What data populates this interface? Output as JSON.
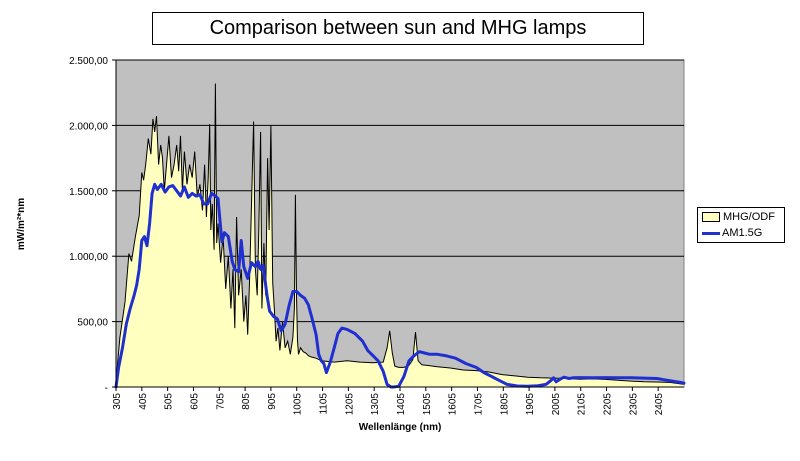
{
  "chart_data": {
    "type": "area",
    "title": "Comparison between sun and MHG lamps",
    "xlabel": "Wellenlänge (nm)",
    "ylabel": "mW/m²*nm",
    "xlim": [
      305,
      2505
    ],
    "ylim": [
      0,
      2500
    ],
    "y_ticks": [
      0,
      500,
      1000,
      1500,
      2000,
      2500
    ],
    "y_tick_labels": [
      "-",
      "500,00",
      "1.000,00",
      "1.500,00",
      "2.000,00",
      "2.500,00"
    ],
    "x_ticks": [
      305,
      405,
      505,
      605,
      705,
      805,
      905,
      1005,
      1105,
      1205,
      1305,
      1405,
      1505,
      1605,
      1705,
      1805,
      1905,
      2005,
      2105,
      2205,
      2305,
      2405
    ],
    "grid": true,
    "legend_position": "right",
    "series": [
      {
        "name": "MHG/ODF",
        "style": "filled-area",
        "fill_color": "#ffffc0",
        "line_color": "#000000",
        "x": [
          305,
          320,
          340,
          355,
          365,
          380,
          395,
          405,
          412,
          420,
          430,
          440,
          448,
          455,
          462,
          470,
          478,
          485,
          492,
          500,
          510,
          520,
          530,
          540,
          548,
          555,
          562,
          570,
          580,
          590,
          600,
          610,
          620,
          630,
          640,
          648,
          655,
          662,
          668,
          672,
          678,
          685,
          690,
          695,
          700,
          710,
          720,
          730,
          740,
          750,
          758,
          765,
          772,
          780,
          790,
          800,
          808,
          815,
          822,
          830,
          838,
          845,
          852,
          858,
          865,
          870,
          878,
          885,
          892,
          898,
          905,
          912,
          918,
          925,
          932,
          940,
          950,
          960,
          970,
          980,
          990,
          996,
          1000,
          1004,
          1008,
          1012,
          1020,
          1030,
          1040,
          1050,
          1060,
          1080,
          1100,
          1150,
          1200,
          1250,
          1300,
          1340,
          1355,
          1365,
          1375,
          1385,
          1400,
          1420,
          1440,
          1455,
          1465,
          1475,
          1490,
          1510,
          1550,
          1600,
          1650,
          1700,
          1750,
          1800,
          1850,
          1900,
          1950,
          2000,
          2050,
          2100,
          2150,
          2200,
          2250,
          2300,
          2350,
          2400,
          2450,
          2505
        ],
        "values": [
          40,
          380,
          650,
          1020,
          960,
          1150,
          1310,
          1640,
          1580,
          1700,
          1900,
          1780,
          2050,
          1950,
          2070,
          1700,
          1850,
          1750,
          1500,
          1680,
          1920,
          1600,
          1700,
          1850,
          1650,
          1920,
          1500,
          1800,
          1550,
          1700,
          1600,
          1800,
          1450,
          1550,
          1350,
          1700,
          1300,
          1600,
          2010,
          1200,
          1400,
          1050,
          2320,
          1100,
          1250,
          950,
          1150,
          750,
          1000,
          600,
          900,
          450,
          1300,
          700,
          900,
          500,
          700,
          400,
          800,
          1400,
          2030,
          900,
          700,
          1200,
          1950,
          600,
          1100,
          700,
          1750,
          1200,
          2000,
          800,
          600,
          350,
          450,
          280,
          500,
          300,
          350,
          250,
          380,
          600,
          1470,
          700,
          350,
          250,
          300,
          270,
          260,
          240,
          230,
          220,
          200,
          190,
          200,
          190,
          185,
          190,
          300,
          430,
          260,
          160,
          150,
          150,
          165,
          210,
          420,
          200,
          170,
          165,
          155,
          145,
          130,
          125,
          115,
          95,
          85,
          75,
          70,
          68,
          65,
          60,
          62,
          58,
          52,
          45,
          40,
          38,
          35,
          20
        ]
      },
      {
        "name": "AM1.5G",
        "style": "line",
        "line_color": "#1f2fd0",
        "x": [
          305,
          315,
          330,
          345,
          360,
          375,
          385,
          395,
          405,
          415,
          425,
          435,
          445,
          455,
          465,
          480,
          495,
          510,
          525,
          540,
          555,
          570,
          585,
          600,
          615,
          630,
          645,
          660,
          675,
          690,
          700,
          715,
          725,
          740,
          755,
          765,
          780,
          790,
          800,
          815,
          830,
          845,
          855,
          865,
          875,
          890,
          900,
          915,
          930,
          945,
          960,
          975,
          990,
          1005,
          1020,
          1035,
          1050,
          1065,
          1080,
          1090,
          1100,
          1110,
          1120,
          1135,
          1150,
          1165,
          1180,
          1200,
          1230,
          1260,
          1280,
          1300,
          1320,
          1340,
          1355,
          1370,
          1380,
          1400,
          1420,
          1440,
          1460,
          1480,
          1500,
          1520,
          1550,
          1580,
          1620,
          1660,
          1700,
          1730,
          1760,
          1780,
          1800,
          1820,
          1860,
          1900,
          1940,
          1970,
          1990,
          2000,
          2010,
          2025,
          2040,
          2060,
          2075,
          2100,
          2150,
          2200,
          2250,
          2300,
          2350,
          2400,
          2430,
          2460,
          2490,
          2505
        ],
        "values": [
          0,
          150,
          300,
          480,
          600,
          700,
          780,
          900,
          1120,
          1150,
          1080,
          1250,
          1480,
          1550,
          1510,
          1550,
          1490,
          1530,
          1540,
          1500,
          1460,
          1530,
          1450,
          1480,
          1460,
          1470,
          1400,
          1400,
          1480,
          1460,
          1440,
          1110,
          1180,
          1150,
          960,
          900,
          880,
          1120,
          920,
          830,
          950,
          920,
          960,
          900,
          930,
          700,
          580,
          540,
          520,
          430,
          480,
          620,
          730,
          730,
          700,
          680,
          630,
          520,
          400,
          250,
          200,
          180,
          110,
          190,
          300,
          410,
          450,
          440,
          410,
          350,
          280,
          240,
          200,
          120,
          20,
          0,
          0,
          5,
          80,
          200,
          240,
          270,
          260,
          250,
          250,
          240,
          220,
          180,
          150,
          110,
          80,
          60,
          40,
          20,
          8,
          5,
          10,
          20,
          50,
          70,
          40,
          60,
          75,
          65,
          70,
          72,
          70,
          72,
          70,
          70,
          68,
          65,
          55,
          45,
          35,
          30
        ]
      }
    ]
  }
}
